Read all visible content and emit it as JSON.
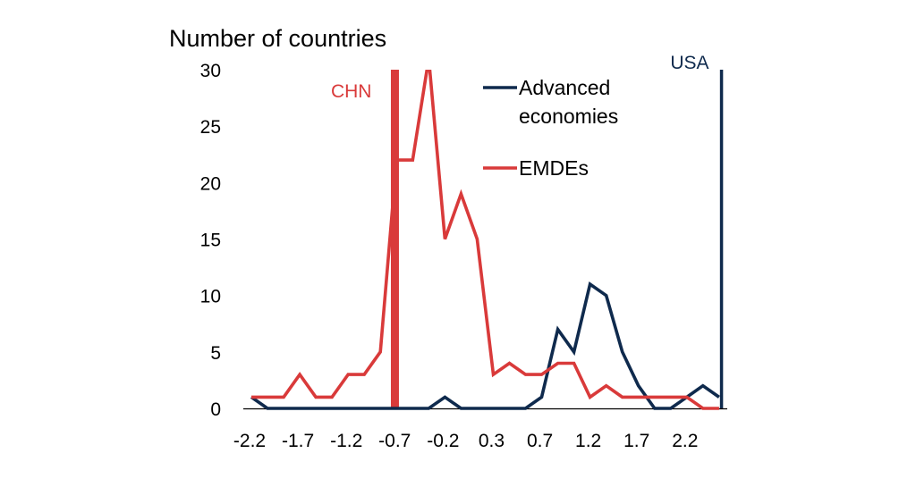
{
  "chart_data": {
    "type": "line",
    "title": "",
    "ylabel": "Number of countries",
    "xlabel": "",
    "ylim": [
      0,
      30
    ],
    "yticks": [
      0,
      5,
      10,
      15,
      20,
      25,
      30
    ],
    "ytick_labels": [
      "0",
      "5",
      "10",
      "15",
      "20",
      "25",
      "30"
    ],
    "num_bins": 30,
    "xtick_indices": [
      0,
      3,
      6,
      9,
      12,
      15,
      18,
      21,
      24,
      27
    ],
    "xtick_labels": [
      "-2.2",
      "-1.7",
      "-1.2",
      "-0.7",
      "-0.2",
      "0.3",
      "0.7",
      "1.2",
      "1.7",
      "2.2"
    ],
    "grid": false,
    "legend_position": "top-right",
    "series": [
      {
        "name": "Advanced economies",
        "legend_label_lines": [
          "Advanced",
          "economies"
        ],
        "color": "#0f2a4d",
        "values": [
          1,
          0,
          0,
          0,
          0,
          0,
          0,
          0,
          0,
          0,
          0,
          0,
          1,
          0,
          0,
          0,
          0,
          0,
          1,
          7,
          5,
          11,
          10,
          5,
          2,
          0,
          0,
          1,
          2,
          1
        ]
      },
      {
        "name": "EMDEs",
        "legend_label_lines": [
          "EMDEs"
        ],
        "color": "#d93a3a",
        "values": [
          1,
          1,
          1,
          3,
          1,
          1,
          3,
          3,
          5,
          22,
          22,
          31,
          15,
          19,
          15,
          3,
          4,
          3,
          3,
          4,
          4,
          1,
          2,
          1,
          1,
          1,
          1,
          1,
          0,
          0
        ]
      }
    ],
    "reference_lines": [
      {
        "label": "CHN",
        "bin_position": 8.9,
        "color": "#d93a3a",
        "style": "thick"
      },
      {
        "label": "USA",
        "bin_position": 29.15,
        "color": "#0f2a4d",
        "style": "thin"
      }
    ]
  }
}
